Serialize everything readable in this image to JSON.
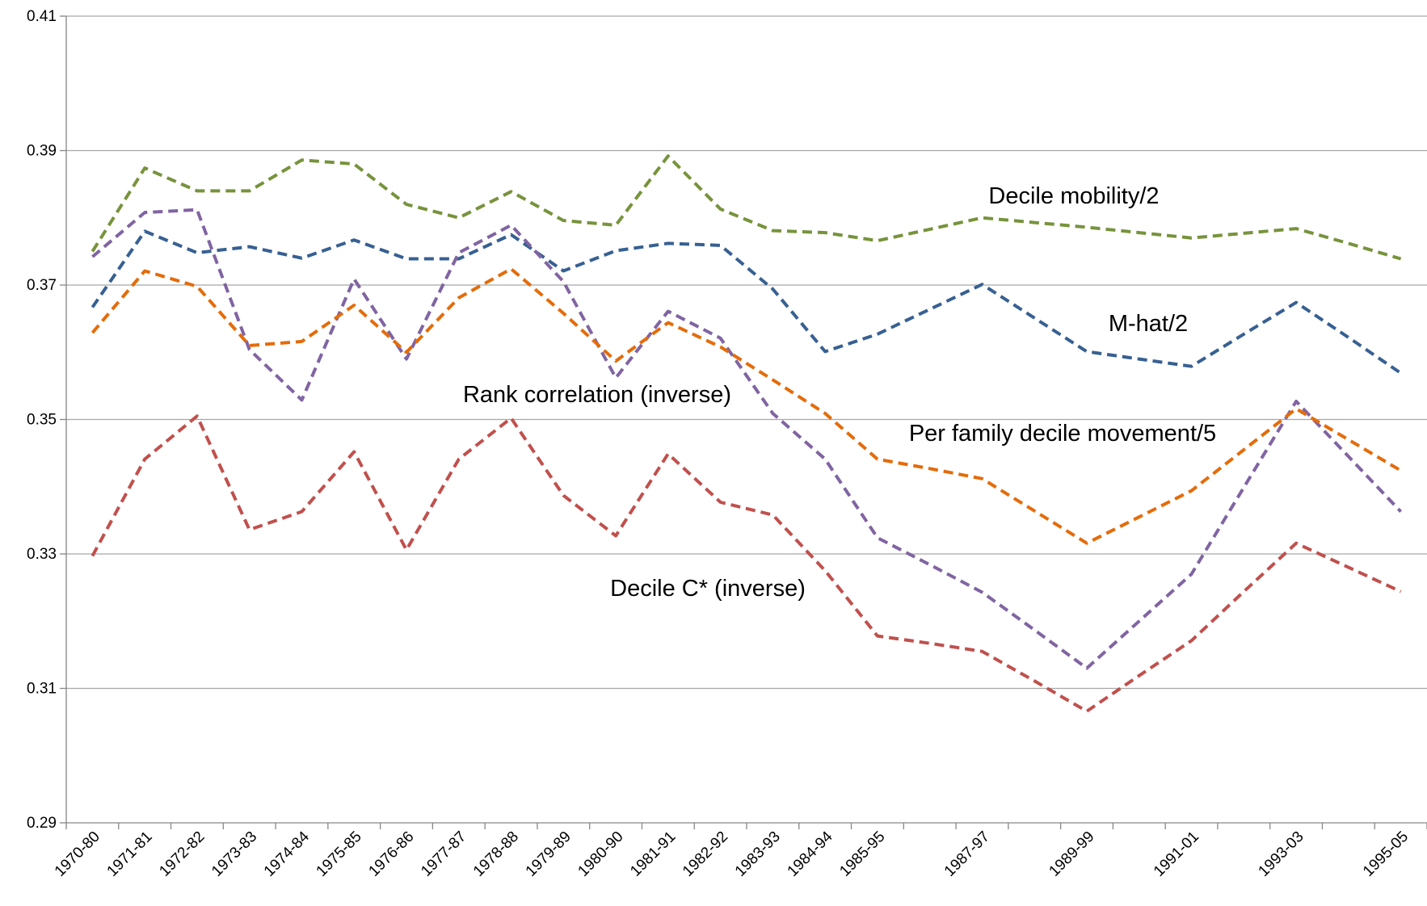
{
  "chart_data": {
    "type": "line",
    "categories": [
      "1970-80",
      "1971-81",
      "1972-82",
      "1973-83",
      "1974-84",
      "1975-85",
      "1976-86",
      "1977-87",
      "1978-88",
      "1979-89",
      "1980-90",
      "1981-91",
      "1982-92",
      "1983-93",
      "1984-94",
      "1985-95",
      null,
      "1987-97",
      null,
      "1989-99",
      null,
      "1991-01",
      null,
      "1993-03",
      null,
      "1995-05"
    ],
    "ylim": [
      0.29,
      0.41
    ],
    "yticks": [
      0.29,
      0.31,
      0.33,
      0.35,
      0.37,
      0.39,
      0.41
    ],
    "grid": true,
    "line_style": "dashed",
    "series": [
      {
        "name": "Decile mobility/2",
        "color": "#77933c",
        "values": [
          0.375,
          0.3874,
          0.384,
          0.384,
          0.3886,
          0.388,
          0.382,
          0.38,
          0.3839,
          0.3796,
          0.3789,
          0.3892,
          0.3813,
          0.3781,
          0.3778,
          0.3766,
          0.3783,
          0.38,
          0.3793,
          0.3786,
          0.3778,
          0.377,
          0.3777,
          0.3784,
          0.3762,
          0.3739
        ]
      },
      {
        "name": "M-hat/2",
        "color": "#376092",
        "values": [
          0.3667,
          0.378,
          0.3748,
          0.3757,
          0.374,
          0.3767,
          0.3739,
          0.3739,
          0.3775,
          0.3721,
          0.3751,
          0.3762,
          0.3759,
          0.3694,
          0.3601,
          0.3627,
          0.3664,
          0.3701,
          0.3651,
          0.3601,
          0.359,
          0.3579,
          0.3627,
          0.3674,
          0.3622,
          0.3569
        ]
      },
      {
        "name": "Rank correlation (inverse)",
        "color": "#8064a2",
        "values": [
          0.3742,
          0.3808,
          0.3812,
          0.3604,
          0.3529,
          0.3709,
          0.359,
          0.3748,
          0.3789,
          0.3705,
          0.3562,
          0.3661,
          0.3621,
          0.3509,
          0.3441,
          0.3324,
          0.3284,
          0.3243,
          0.3187,
          0.313,
          0.32,
          0.327,
          0.3399,
          0.3527,
          0.3445,
          0.3363
        ]
      },
      {
        "name": "Per family decile movement/5",
        "color": "#e46c0a",
        "values": [
          0.3629,
          0.3721,
          0.3698,
          0.361,
          0.3616,
          0.367,
          0.36,
          0.3681,
          0.3724,
          0.3658,
          0.3587,
          0.3644,
          0.3608,
          0.3559,
          0.3509,
          0.3441,
          0.3427,
          0.3412,
          0.3364,
          0.3316,
          0.3355,
          0.3394,
          0.3455,
          0.3516,
          0.347,
          0.3424
        ]
      },
      {
        "name": "Decile C* (inverse)",
        "color": "#c0504d",
        "values": [
          0.3297,
          0.3441,
          0.3505,
          0.3336,
          0.3363,
          0.3452,
          0.3306,
          0.3441,
          0.3502,
          0.3387,
          0.3327,
          0.3449,
          0.3377,
          0.3358,
          0.3275,
          0.3178,
          0.3167,
          0.3155,
          0.3111,
          0.3066,
          0.3119,
          0.3171,
          0.3244,
          0.3316,
          0.328,
          0.3244
        ]
      }
    ]
  }
}
